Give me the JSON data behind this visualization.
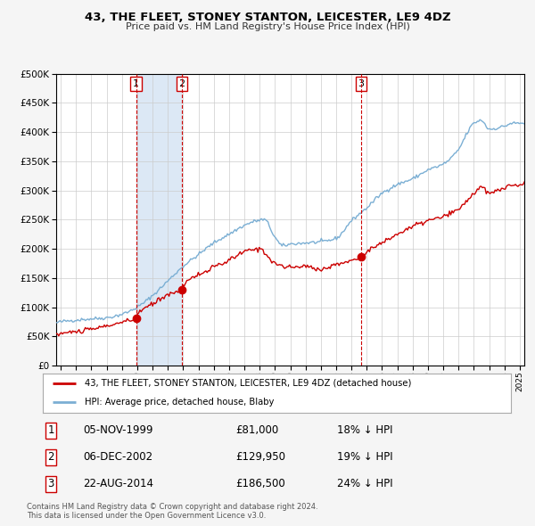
{
  "title": "43, THE FLEET, STONEY STANTON, LEICESTER, LE9 4DZ",
  "subtitle": "Price paid vs. HM Land Registry's House Price Index (HPI)",
  "ylim": [
    0,
    500000
  ],
  "yticks": [
    0,
    50000,
    100000,
    150000,
    200000,
    250000,
    300000,
    350000,
    400000,
    450000,
    500000
  ],
  "xlim_start": 1994.7,
  "xlim_end": 2025.3,
  "hpi_color": "#7bafd4",
  "price_color": "#cc0000",
  "vline_color": "#cc0000",
  "shade_color": "#dce8f5",
  "sale_dates": [
    1999.92,
    2002.92,
    2014.64
  ],
  "sale_prices": [
    81000,
    129950,
    186500
  ],
  "sale_labels": [
    "1",
    "2",
    "3"
  ],
  "legend_line1": "43, THE FLEET, STONEY STANTON, LEICESTER, LE9 4DZ (detached house)",
  "legend_line2": "HPI: Average price, detached house, Blaby",
  "table_data": [
    [
      "1",
      "05-NOV-1999",
      "£81,000",
      "18% ↓ HPI"
    ],
    [
      "2",
      "06-DEC-2002",
      "£129,950",
      "19% ↓ HPI"
    ],
    [
      "3",
      "22-AUG-2014",
      "£186,500",
      "24% ↓ HPI"
    ]
  ],
  "footer": "Contains HM Land Registry data © Crown copyright and database right 2024.\nThis data is licensed under the Open Government Licence v3.0.",
  "bg_color": "#f5f5f5",
  "plot_bg_color": "#ffffff"
}
